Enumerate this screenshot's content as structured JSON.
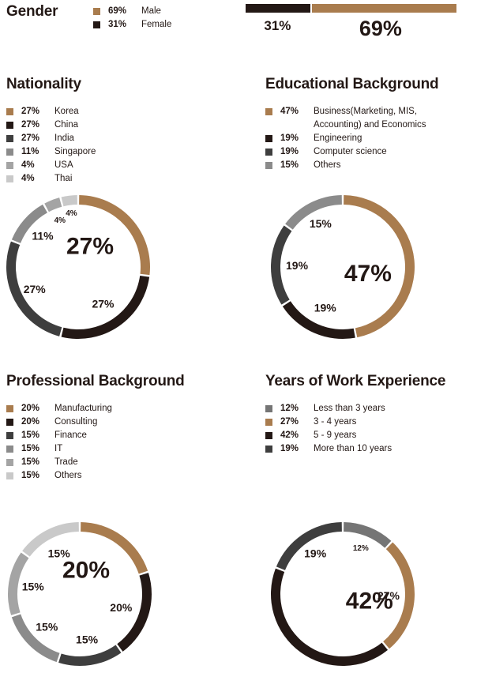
{
  "colors": {
    "gold": "#a97c4e",
    "black": "#231815",
    "dark": "#3e3e3e",
    "mid": "#757575",
    "gray": "#8b8b8b",
    "light": "#a4a4a4",
    "lighter": "#c9c9c9"
  },
  "chart_data": [
    {
      "id": "gender",
      "type": "bar",
      "title": "Gender",
      "categories": [
        "Male",
        "Female"
      ],
      "values": [
        69,
        31
      ],
      "value_labels": [
        "69%",
        "31%"
      ],
      "colors": [
        "#a97c4e",
        "#231815"
      ],
      "bar_labels": {
        "female": "31%",
        "male": "69%"
      }
    },
    {
      "id": "nationality",
      "type": "pie",
      "title": "Nationality",
      "categories": [
        "Korea",
        "China",
        "India",
        "Singapore",
        "USA",
        "Thai"
      ],
      "values": [
        27,
        27,
        27,
        11,
        4,
        4
      ],
      "value_labels": [
        "27%",
        "27%",
        "27%",
        "11%",
        "4%",
        "4%"
      ],
      "colors": [
        "#a97c4e",
        "#231815",
        "#3e3e3e",
        "#8b8b8b",
        "#a4a4a4",
        "#c9c9c9"
      ]
    },
    {
      "id": "education",
      "type": "pie",
      "title": "Educational Background",
      "categories": [
        "Business(Marketing, MIS, Accounting) and Economics",
        "Engineering",
        "Computer science",
        "Others"
      ],
      "values": [
        47,
        19,
        19,
        15
      ],
      "value_labels": [
        "47%",
        "19%",
        "19%",
        "15%"
      ],
      "colors": [
        "#a97c4e",
        "#231815",
        "#3e3e3e",
        "#8b8b8b"
      ]
    },
    {
      "id": "professional",
      "type": "pie",
      "title": "Professional Background",
      "categories": [
        "Manufacturing",
        "Consulting",
        "Finance",
        "IT",
        "Trade",
        "Others"
      ],
      "values": [
        20,
        20,
        15,
        15,
        15,
        15
      ],
      "value_labels": [
        "20%",
        "20%",
        "15%",
        "15%",
        "15%",
        "15%"
      ],
      "colors": [
        "#a97c4e",
        "#231815",
        "#3e3e3e",
        "#8b8b8b",
        "#a4a4a4",
        "#c9c9c9"
      ]
    },
    {
      "id": "experience",
      "type": "pie",
      "title": "Years of Work Experience",
      "categories": [
        "Less than 3 years",
        "3 - 4 years",
        "5 - 9 years",
        "More than 10 years"
      ],
      "values": [
        12,
        27,
        42,
        19
      ],
      "value_labels": [
        "12%",
        "27%",
        "42%",
        "19%"
      ],
      "colors": [
        "#757575",
        "#a97c4e",
        "#231815",
        "#3e3e3e"
      ]
    }
  ]
}
